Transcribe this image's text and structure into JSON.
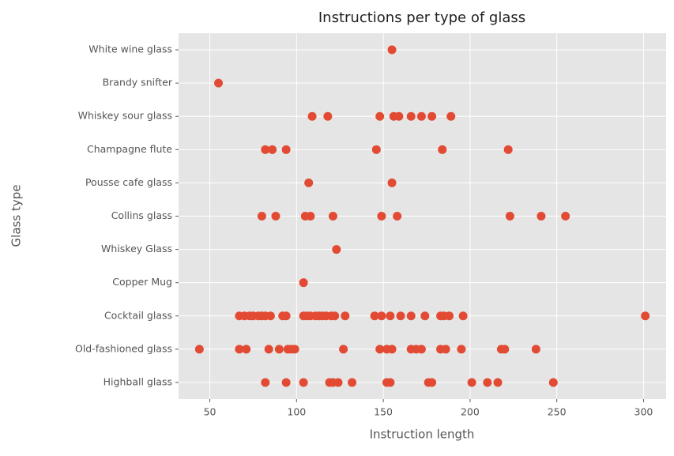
{
  "chart_data": {
    "type": "scatter",
    "title": "Instructions per type of glass",
    "xlabel": "Instruction length",
    "ylabel": "Glass type",
    "categories": [
      "Highball glass",
      "Old-fashioned glass",
      "Cocktail glass",
      "Copper Mug",
      "Whiskey Glass",
      "Collins glass",
      "Pousse cafe glass",
      "Champagne flute",
      "Whiskey sour glass",
      "Brandy snifter",
      "White wine glass"
    ],
    "xlim": [
      32,
      313
    ],
    "xticks": [
      50,
      100,
      150,
      200,
      250,
      300
    ],
    "grid": true,
    "color": "#E24A33",
    "x": [
      155,
      55,
      109,
      118,
      148,
      156,
      159,
      166,
      172,
      178,
      189,
      82,
      86,
      94,
      146,
      184,
      222,
      107,
      155,
      80,
      88,
      105,
      108,
      121,
      149,
      158,
      223,
      241,
      255,
      123,
      104,
      67,
      70,
      73,
      75,
      78,
      80,
      82,
      85,
      92,
      94,
      104,
      106,
      108,
      111,
      113,
      115,
      117,
      120,
      122,
      128,
      145,
      149,
      154,
      160,
      166,
      174,
      183,
      185,
      188,
      196,
      301,
      44,
      67,
      71,
      84,
      90,
      95,
      97,
      99,
      127,
      148,
      152,
      155,
      166,
      169,
      172,
      183,
      186,
      195,
      218,
      220,
      238,
      82,
      94,
      104,
      119,
      121,
      124,
      132,
      152,
      154,
      176,
      178,
      201,
      210,
      216,
      248
    ],
    "y": [
      "White wine glass",
      "Brandy snifter",
      "Whiskey sour glass",
      "Whiskey sour glass",
      "Whiskey sour glass",
      "Whiskey sour glass",
      "Whiskey sour glass",
      "Whiskey sour glass",
      "Whiskey sour glass",
      "Whiskey sour glass",
      "Whiskey sour glass",
      "Champagne flute",
      "Champagne flute",
      "Champagne flute",
      "Champagne flute",
      "Champagne flute",
      "Champagne flute",
      "Pousse cafe glass",
      "Pousse cafe glass",
      "Collins glass",
      "Collins glass",
      "Collins glass",
      "Collins glass",
      "Collins glass",
      "Collins glass",
      "Collins glass",
      "Collins glass",
      "Collins glass",
      "Collins glass",
      "Whiskey Glass",
      "Copper Mug",
      "Cocktail glass",
      "Cocktail glass",
      "Cocktail glass",
      "Cocktail glass",
      "Cocktail glass",
      "Cocktail glass",
      "Cocktail glass",
      "Cocktail glass",
      "Cocktail glass",
      "Cocktail glass",
      "Cocktail glass",
      "Cocktail glass",
      "Cocktail glass",
      "Cocktail glass",
      "Cocktail glass",
      "Cocktail glass",
      "Cocktail glass",
      "Cocktail glass",
      "Cocktail glass",
      "Cocktail glass",
      "Cocktail glass",
      "Cocktail glass",
      "Cocktail glass",
      "Cocktail glass",
      "Cocktail glass",
      "Cocktail glass",
      "Cocktail glass",
      "Cocktail glass",
      "Cocktail glass",
      "Cocktail glass",
      "Cocktail glass",
      "Old-fashioned glass",
      "Old-fashioned glass",
      "Old-fashioned glass",
      "Old-fashioned glass",
      "Old-fashioned glass",
      "Old-fashioned glass",
      "Old-fashioned glass",
      "Old-fashioned glass",
      "Old-fashioned glass",
      "Old-fashioned glass",
      "Old-fashioned glass",
      "Old-fashioned glass",
      "Old-fashioned glass",
      "Old-fashioned glass",
      "Old-fashioned glass",
      "Old-fashioned glass",
      "Old-fashioned glass",
      "Old-fashioned glass",
      "Old-fashioned glass",
      "Old-fashioned glass",
      "Old-fashioned glass",
      "Highball glass",
      "Highball glass",
      "Highball glass",
      "Highball glass",
      "Highball glass",
      "Highball glass",
      "Highball glass",
      "Highball glass",
      "Highball glass",
      "Highball glass",
      "Highball glass",
      "Highball glass",
      "Highball glass",
      "Highball glass",
      "Highball glass"
    ]
  }
}
